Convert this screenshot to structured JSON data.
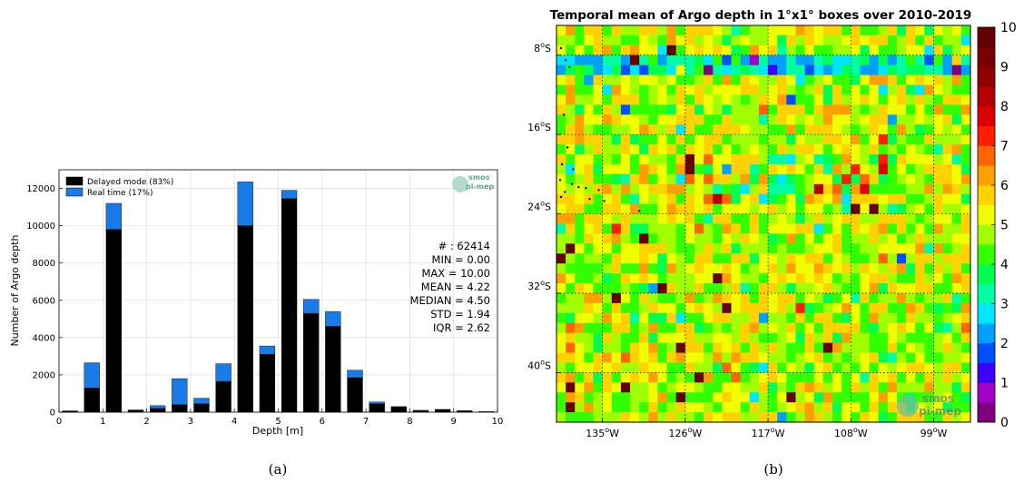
{
  "chart_data": [
    {
      "type": "bar",
      "stacked": true,
      "panel_label": "(a)",
      "xlabel": "Depth [m]",
      "ylabel": "Number of Argo depth",
      "xlim": [
        0,
        10
      ],
      "ylim": [
        0,
        13000
      ],
      "xticks": [
        0,
        1,
        2,
        3,
        4,
        5,
        6,
        7,
        8,
        9,
        10
      ],
      "yticks": [
        0,
        2000,
        4000,
        6000,
        8000,
        10000,
        12000
      ],
      "ytick_labels": [
        "0",
        "2000",
        "4000",
        "6000",
        "8000",
        "10000",
        "12000"
      ],
      "grid": true,
      "legend_position": "top-left",
      "bin_width": 0.35,
      "x": [
        0.25,
        0.75,
        1.25,
        1.75,
        2.25,
        2.75,
        3.25,
        3.75,
        4.25,
        4.75,
        5.25,
        5.75,
        6.25,
        6.75,
        7.25,
        7.75,
        8.25,
        8.75,
        9.25,
        9.75
      ],
      "series": [
        {
          "name": "Delayed mode (83%)",
          "color": "#000000",
          "values": [
            50,
            1300,
            9800,
            100,
            200,
            400,
            450,
            1650,
            10000,
            3100,
            11450,
            5300,
            4600,
            1850,
            450,
            300,
            80,
            150,
            80,
            30
          ]
        },
        {
          "name": "Real time (17%)",
          "color": "#1a7ae6",
          "values": [
            20,
            1350,
            1400,
            20,
            150,
            1400,
            300,
            950,
            2350,
            450,
            450,
            750,
            800,
            400,
            100,
            0,
            20,
            0,
            0,
            0
          ]
        }
      ],
      "stats": [
        {
          "label": "# :",
          "value": "62414"
        },
        {
          "label": "MIN =",
          "value": "0.00"
        },
        {
          "label": "MAX =",
          "value": "10.00"
        },
        {
          "label": "MEAN =",
          "value": "4.22"
        },
        {
          "label": "MEDIAN =",
          "value": "4.50"
        },
        {
          "label": "STD =",
          "value": "1.94"
        },
        {
          "label": "IQR =",
          "value": "2.62"
        }
      ],
      "logo": {
        "line1": "smos",
        "line2": "pi-mep",
        "color": "#5fa88a"
      }
    },
    {
      "type": "heatmap",
      "panel_label": "(b)",
      "title": "Temporal mean of Argo depth in 1°x1° boxes over 2010-2019",
      "xlim_lon": [
        -140,
        -95
      ],
      "ylim_lat": [
        -45,
        -5
      ],
      "x_ticks": [
        {
          "value": -135,
          "deg": "135",
          "suffix": "W"
        },
        {
          "value": -126,
          "deg": "126",
          "suffix": "W"
        },
        {
          "value": -117,
          "deg": "117",
          "suffix": "W"
        },
        {
          "value": -108,
          "deg": "108",
          "suffix": "W"
        },
        {
          "value": -99,
          "deg": "99",
          "suffix": "W"
        }
      ],
      "y_ticks": [
        {
          "value": -8,
          "deg": "8",
          "suffix": "S"
        },
        {
          "value": -16,
          "deg": "16",
          "suffix": "S"
        },
        {
          "value": -24,
          "deg": "24",
          "suffix": "S"
        },
        {
          "value": -32,
          "deg": "32",
          "suffix": "S"
        },
        {
          "value": -40,
          "deg": "40",
          "suffix": "S"
        }
      ],
      "colorbar": {
        "min": 0,
        "max": 10,
        "ticks": [
          "0",
          "1",
          "2",
          "3",
          "4",
          "5",
          "6",
          "7",
          "8",
          "9",
          "10"
        ],
        "colors": [
          "#7f007f",
          "#a000c8",
          "#3c00ff",
          "#0050ff",
          "#00a0ff",
          "#00e6ff",
          "#00ffa0",
          "#00ff50",
          "#32ff00",
          "#a0ff00",
          "#f0ff00",
          "#ffd200",
          "#ffa000",
          "#ff6400",
          "#ff1e00",
          "#dc0000",
          "#b40000",
          "#900000",
          "#780000",
          "#640000"
        ]
      },
      "mean_value": 4.22,
      "grid": "dotted",
      "logo": {
        "line1": "smos",
        "line2": "pi-mep",
        "color": "#6b7f7a"
      }
    }
  ]
}
